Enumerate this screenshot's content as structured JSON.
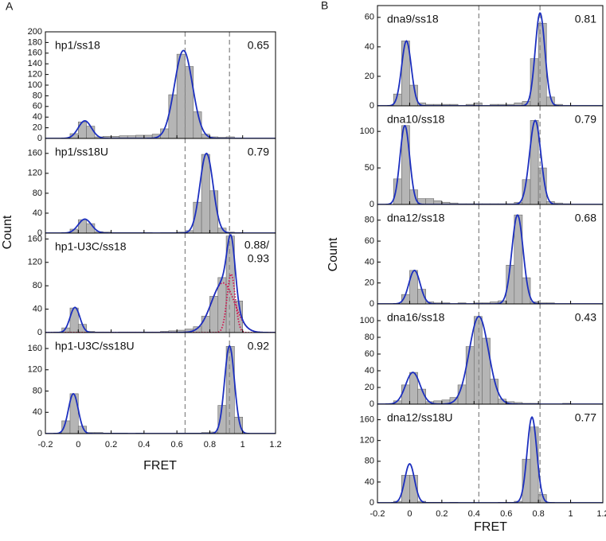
{
  "figure": {
    "panel_labels": [
      "A",
      "B"
    ],
    "xlabel": "FRET",
    "ylabel": "Count"
  },
  "chart_data": [
    {
      "type": "histogram",
      "title": "hp1/ss18",
      "annotation": "0.65",
      "xlim": [
        -0.2,
        1.2
      ],
      "ylim": [
        0,
        200
      ],
      "yticks": [
        0,
        20,
        40,
        60,
        80,
        100,
        120,
        140,
        160,
        180,
        200
      ],
      "vlines": [
        0.65,
        0.92
      ],
      "color": "#b5b5b5",
      "bins": [
        -0.15,
        -0.1,
        -0.05,
        0,
        0.05,
        0.1,
        0.15,
        0.2,
        0.25,
        0.3,
        0.35,
        0.4,
        0.45,
        0.5,
        0.55,
        0.6,
        0.65,
        0.7,
        0.75,
        0.8,
        0.85,
        0.9,
        0.95,
        1.0
      ],
      "values": [
        0,
        1,
        9,
        31,
        23,
        3,
        4,
        4,
        5,
        5,
        6,
        6,
        8,
        18,
        82,
        158,
        135,
        50,
        8,
        3,
        2,
        3,
        1
      ],
      "fit": {
        "color": "#1c2fbf",
        "peaks": [
          {
            "center": 0.04,
            "height": 33,
            "width": 0.04
          },
          {
            "center": 0.64,
            "height": 165,
            "width": 0.055
          }
        ]
      }
    },
    {
      "type": "histogram",
      "title": "hp1/ss18U",
      "annotation": "0.79",
      "xlim": [
        -0.2,
        1.2
      ],
      "ylim": [
        0,
        190
      ],
      "yticks": [
        0,
        40,
        80,
        120,
        160
      ],
      "vlines": [
        0.65,
        0.92
      ],
      "color": "#b5b5b5",
      "bins": [
        -0.15,
        -0.1,
        -0.05,
        0,
        0.05,
        0.1,
        0.15,
        0.2,
        0.25,
        0.3,
        0.35,
        0.4,
        0.45,
        0.5,
        0.55,
        0.6,
        0.65,
        0.7,
        0.75,
        0.8,
        0.85,
        0.9,
        0.95,
        1.0
      ],
      "values": [
        0,
        1,
        8,
        27,
        19,
        3,
        2,
        1,
        1,
        1,
        1,
        1,
        0,
        1,
        1,
        2,
        5,
        62,
        158,
        85,
        10,
        2,
        1
      ],
      "fit": {
        "color": "#1c2fbf",
        "peaks": [
          {
            "center": 0.04,
            "height": 28,
            "width": 0.04
          },
          {
            "center": 0.78,
            "height": 160,
            "width": 0.04
          }
        ]
      }
    },
    {
      "type": "histogram",
      "title": "hp1-U3C/ss18",
      "annotation": [
        "0.88/",
        "0.93"
      ],
      "xlim": [
        -0.2,
        1.2
      ],
      "ylim": [
        0,
        170
      ],
      "yticks": [
        0,
        40,
        80,
        120,
        160
      ],
      "vlines": [
        0.65,
        0.92
      ],
      "color": "#b5b5b5",
      "bins": [
        -0.15,
        -0.1,
        -0.05,
        0,
        0.05,
        0.1,
        0.15,
        0.2,
        0.25,
        0.3,
        0.35,
        0.4,
        0.45,
        0.5,
        0.55,
        0.6,
        0.65,
        0.7,
        0.75,
        0.8,
        0.85,
        0.9,
        0.95,
        1.0
      ],
      "values": [
        1,
        8,
        42,
        14,
        2,
        1,
        1,
        0,
        1,
        1,
        1,
        1,
        1,
        2,
        3,
        4,
        6,
        10,
        28,
        62,
        94,
        165,
        54
      ],
      "fit": {
        "color": "#1c2fbf",
        "components_color": "#d0104c",
        "peaks": [
          {
            "center": -0.02,
            "height": 43,
            "width": 0.03
          },
          {
            "center": 0.88,
            "height": 85,
            "width": 0.07
          },
          {
            "center": 0.93,
            "height": 100,
            "width": 0.025
          }
        ]
      }
    },
    {
      "type": "histogram",
      "title": "hp1-U3C/ss18U",
      "annotation": "0.92",
      "xlim": [
        -0.2,
        1.2
      ],
      "xticks": [
        -0.2,
        0,
        0.2,
        0.4,
        0.6,
        0.8,
        1,
        1.2
      ],
      "ylim": [
        0,
        190
      ],
      "yticks": [
        0,
        40,
        80,
        120,
        160
      ],
      "vlines": [
        0.65,
        0.92
      ],
      "color": "#b5b5b5",
      "bins": [
        -0.15,
        -0.1,
        -0.05,
        0,
        0.05,
        0.1,
        0.15,
        0.2,
        0.25,
        0.3,
        0.35,
        0.4,
        0.45,
        0.5,
        0.55,
        0.6,
        0.65,
        0.7,
        0.75,
        0.8,
        0.85,
        0.9,
        0.95,
        1.0
      ],
      "values": [
        1,
        24,
        75,
        14,
        2,
        2,
        1,
        1,
        1,
        0,
        1,
        0,
        0,
        0,
        0,
        1,
        1,
        1,
        2,
        3,
        53,
        164,
        31
      ],
      "fit": {
        "color": "#1c2fbf",
        "peaks": [
          {
            "center": -0.03,
            "height": 75,
            "width": 0.03
          },
          {
            "center": 0.92,
            "height": 165,
            "width": 0.03
          }
        ]
      }
    },
    {
      "type": "histogram",
      "title": "dna9/ss18",
      "annotation": "0.81",
      "xlim": [
        -0.2,
        1.2
      ],
      "ylim": [
        0,
        68
      ],
      "yticks": [
        0,
        20,
        40,
        60
      ],
      "vlines": [
        0.43,
        0.81
      ],
      "color": "#b5b5b5",
      "bins": [
        -0.15,
        -0.1,
        -0.05,
        0,
        0.05,
        0.1,
        0.15,
        0.2,
        0.25,
        0.3,
        0.35,
        0.4,
        0.45,
        0.5,
        0.55,
        0.6,
        0.65,
        0.7,
        0.75,
        0.8,
        0.85,
        0.9,
        0.95,
        1.0
      ],
      "values": [
        0,
        8,
        44,
        14,
        2,
        1,
        1,
        1,
        1,
        0,
        1,
        2,
        0,
        1,
        1,
        1,
        2,
        3,
        32,
        56,
        6,
        1,
        0
      ],
      "fit": {
        "color": "#1c2fbf",
        "peaks": [
          {
            "center": -0.02,
            "height": 44,
            "width": 0.03
          },
          {
            "center": 0.81,
            "height": 63,
            "width": 0.03
          }
        ]
      }
    },
    {
      "type": "histogram",
      "title": "dna10/ss18",
      "annotation": "0.79",
      "xlim": [
        -0.2,
        1.2
      ],
      "ylim": [
        0,
        135
      ],
      "yticks": [
        0,
        50,
        100
      ],
      "vlines": [
        0.43,
        0.81
      ],
      "color": "#b5b5b5",
      "bins": [
        -0.15,
        -0.1,
        -0.05,
        0,
        0.05,
        0.1,
        0.15,
        0.2,
        0.25,
        0.3,
        0.35,
        0.4,
        0.45,
        0.5,
        0.55,
        0.6,
        0.65,
        0.7,
        0.75,
        0.8,
        0.85,
        0.9,
        0.95,
        1.0
      ],
      "values": [
        0,
        35,
        108,
        20,
        8,
        8,
        5,
        3,
        2,
        1,
        1,
        1,
        1,
        1,
        1,
        1,
        3,
        34,
        115,
        50,
        4,
        2,
        1
      ],
      "fit": {
        "color": "#1c2fbf",
        "peaks": [
          {
            "center": -0.03,
            "height": 108,
            "width": 0.03
          },
          {
            "center": 0.78,
            "height": 115,
            "width": 0.035
          }
        ]
      }
    },
    {
      "type": "histogram",
      "title": "dna12/ss18",
      "annotation": "0.68",
      "xlim": [
        -0.2,
        1.2
      ],
      "ylim": [
        0,
        95
      ],
      "yticks": [
        0,
        20,
        40,
        60,
        80
      ],
      "vlines": [
        0.43,
        0.81
      ],
      "color": "#b5b5b5",
      "bins": [
        -0.15,
        -0.1,
        -0.05,
        0,
        0.05,
        0.1,
        0.15,
        0.2,
        0.25,
        0.3,
        0.35,
        0.4,
        0.45,
        0.5,
        0.55,
        0.6,
        0.65,
        0.7,
        0.75,
        0.8,
        0.85,
        0.9,
        0.95,
        1.0
      ],
      "values": [
        0,
        0,
        9,
        32,
        14,
        2,
        1,
        1,
        0,
        1,
        0,
        1,
        1,
        2,
        3,
        37,
        85,
        25,
        2,
        1,
        1,
        0,
        0
      ],
      "fit": {
        "color": "#1c2fbf",
        "peaks": [
          {
            "center": 0.03,
            "height": 32,
            "width": 0.035
          },
          {
            "center": 0.67,
            "height": 85,
            "width": 0.035
          }
        ]
      }
    },
    {
      "type": "histogram",
      "title": "dna16/ss18",
      "annotation": "0.43",
      "xlim": [
        -0.2,
        1.2
      ],
      "ylim": [
        0,
        120
      ],
      "yticks": [
        0,
        20,
        40,
        60,
        80,
        100
      ],
      "vlines": [
        0.43,
        0.81
      ],
      "color": "#b5b5b5",
      "bins": [
        -0.15,
        -0.1,
        -0.05,
        0,
        0.05,
        0.1,
        0.15,
        0.2,
        0.25,
        0.3,
        0.35,
        0.4,
        0.45,
        0.5,
        0.55,
        0.6,
        0.65,
        0.7,
        0.75,
        0.8,
        0.85,
        0.9,
        0.95,
        1.0
      ],
      "values": [
        0,
        4,
        23,
        38,
        18,
        3,
        4,
        5,
        8,
        23,
        69,
        105,
        79,
        30,
        6,
        3,
        2,
        1,
        1,
        0,
        0,
        0,
        1
      ],
      "fit": {
        "color": "#1c2fbf",
        "peaks": [
          {
            "center": 0.02,
            "height": 38,
            "width": 0.045
          },
          {
            "center": 0.43,
            "height": 105,
            "width": 0.06
          }
        ]
      }
    },
    {
      "type": "histogram",
      "title": "dna12/ss18U",
      "annotation": "0.77",
      "xlim": [
        -0.2,
        1.2
      ],
      "xticks": [
        -0.2,
        0,
        0.2,
        0.4,
        0.6,
        0.8,
        1,
        1.2
      ],
      "ylim": [
        0,
        190
      ],
      "yticks": [
        0,
        40,
        80,
        120,
        160
      ],
      "vlines": [
        0.43,
        0.81
      ],
      "color": "#b5b5b5",
      "bins": [
        -0.15,
        -0.1,
        -0.05,
        0,
        0.05,
        0.1,
        0.15,
        0.2,
        0.25,
        0.3,
        0.35,
        0.4,
        0.45,
        0.5,
        0.55,
        0.6,
        0.65,
        0.7,
        0.75,
        0.8,
        0.85,
        0.9,
        0.95,
        1.0
      ],
      "values": [
        0,
        3,
        53,
        53,
        3,
        1,
        1,
        0,
        1,
        0,
        0,
        0,
        0,
        0,
        1,
        1,
        3,
        84,
        146,
        16,
        1,
        0,
        0
      ],
      "fit": {
        "color": "#1c2fbf",
        "peaks": [
          {
            "center": 0,
            "height": 75,
            "width": 0.03
          },
          {
            "center": 0.76,
            "height": 165,
            "width": 0.03
          }
        ]
      }
    }
  ]
}
